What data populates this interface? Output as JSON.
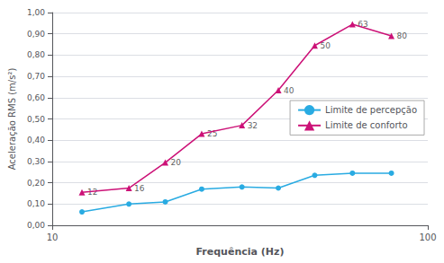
{
  "chart_data": {
    "type": "line",
    "xlabel": "Frequência (Hz)",
    "ylabel": "Aceleração RMS (m/s²)",
    "log": "x",
    "grid": "y",
    "legend": "right",
    "xlim": [
      10,
      100
    ],
    "xticks": [
      10,
      100
    ],
    "ylim": [
      0.0,
      1.0
    ],
    "yticks": [
      {
        "value": 0.0,
        "label": "0,00"
      },
      {
        "value": 0.1,
        "label": "0,10"
      },
      {
        "value": 0.2,
        "label": "0,20"
      },
      {
        "value": 0.3,
        "label": "0,30"
      },
      {
        "value": 0.4,
        "label": "0,40"
      },
      {
        "value": 0.5,
        "label": "0,50"
      },
      {
        "value": 0.6,
        "label": "0,60"
      },
      {
        "value": 0.7,
        "label": "0,70"
      },
      {
        "value": 0.8,
        "label": "0,80"
      },
      {
        "value": 0.9,
        "label": "0,90"
      },
      {
        "value": 1.0,
        "label": "1,00"
      }
    ],
    "x": [
      12,
      16,
      20,
      25,
      32,
      40,
      50,
      63,
      80
    ],
    "series": [
      {
        "name": "Limite de percepção",
        "color": "#29ABE2",
        "marker": "circle",
        "values": [
          0.063,
          0.1,
          0.11,
          0.17,
          0.18,
          0.175,
          0.235,
          0.245,
          0.245
        ]
      },
      {
        "name": "Limite de conforto",
        "color": "#CC1177",
        "marker": "triangle",
        "values": [
          0.155,
          0.175,
          0.295,
          0.43,
          0.47,
          0.635,
          0.845,
          0.945,
          0.89
        ]
      }
    ],
    "annotations": [
      {
        "text": "12",
        "x": 12,
        "y": 0.155
      },
      {
        "text": "16",
        "x": 16,
        "y": 0.175
      },
      {
        "text": "20",
        "x": 20,
        "y": 0.295
      },
      {
        "text": "25",
        "x": 25,
        "y": 0.43
      },
      {
        "text": "32",
        "x": 32,
        "y": 0.47
      },
      {
        "text": "40",
        "x": 40,
        "y": 0.635
      },
      {
        "text": "50",
        "x": 50,
        "y": 0.845
      },
      {
        "text": "63",
        "x": 63,
        "y": 0.945
      },
      {
        "text": "80",
        "x": 80,
        "y": 0.89
      }
    ]
  }
}
